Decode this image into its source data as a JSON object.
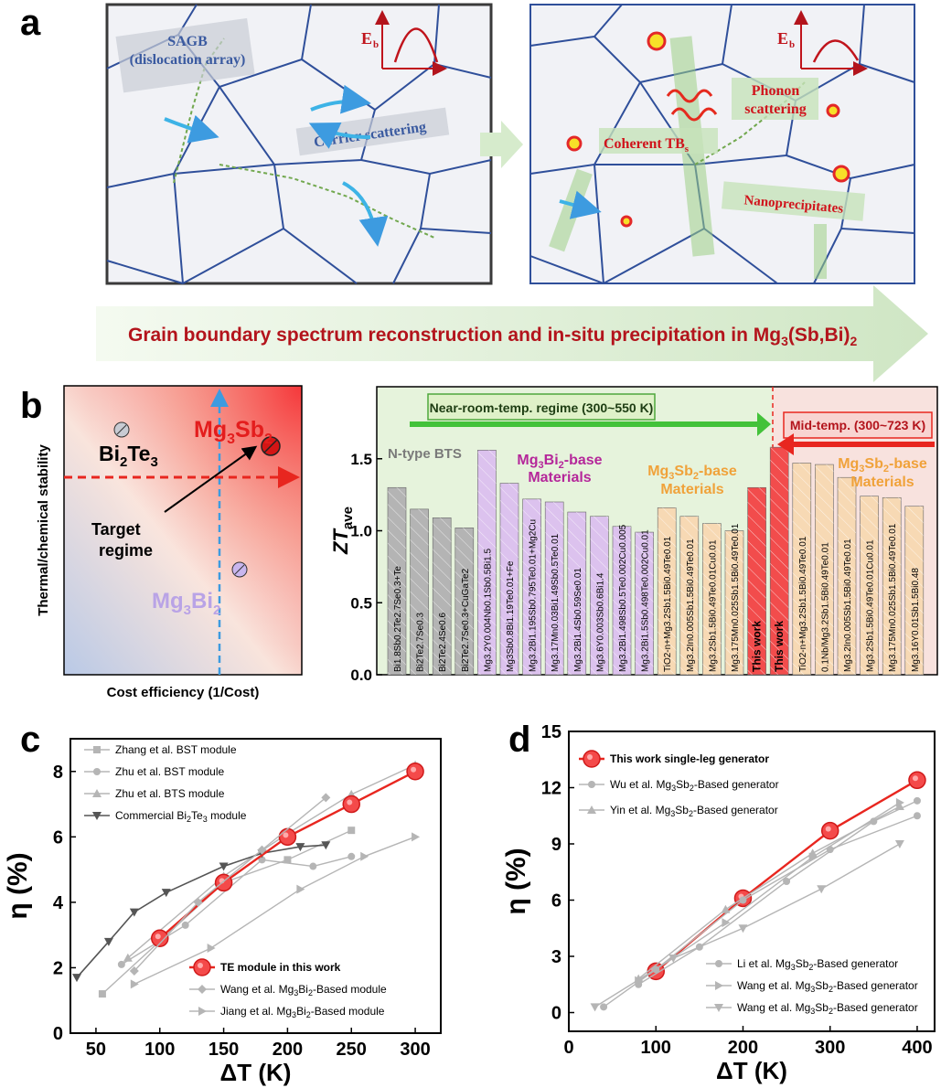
{
  "panel_labels": {
    "a": "a",
    "b": "b",
    "c": "c",
    "d": "d"
  },
  "panel_a": {
    "left": {
      "sagb_line1": "SAGB",
      "sagb_line2": "(dislocation array)",
      "carrier": "Carrier scattering",
      "eb": "E",
      "eb_sub": "b"
    },
    "right": {
      "phonon_line1": "Phonon",
      "phonon_line2": "scattering",
      "coherent": "Coherent TB",
      "coherent_sub": "s",
      "nano": "Nanoprecipitates",
      "eb": "E",
      "eb_sub": "b"
    },
    "banner": "Grain boundary spectrum reconstruction and in-situ precipitation in Mg",
    "banner_sub1": "3",
    "banner_mid": "(Sb,Bi)",
    "banner_sub2": "2",
    "colors": {
      "grain": "#2f4f9a",
      "banner_text": "#b3141c",
      "arrow": "#d9ecd0"
    }
  },
  "panel_b_left": {
    "ylabel": "Thermal/chemical stability",
    "xlabel": "Cost efficiency (1/Cost)",
    "bi2te3": "Bi",
    "bi2te3_s1": "2",
    "bi2te3_t": "Te",
    "bi2te3_s2": "3",
    "mg3sb2": "Mg",
    "mg3sb2_s1": "3",
    "mg3sb2_t": "Sb",
    "mg3sb2_s2": "2",
    "mg3bi2": "Mg",
    "mg3bi2_s1": "3",
    "mg3bi2_t": "Bi",
    "mg3bi2_s2": "2",
    "target1": "Target",
    "target2": "regime"
  },
  "chart_data": [
    {
      "type": "bar",
      "ylabel": "ZT",
      "ylabel_sub": "ave",
      "ylim": [
        0,
        1.9
      ],
      "yticks": [
        "0.0",
        "0.5",
        "1.0",
        "1.5"
      ],
      "regime_near": "Near-room-temp. regime (300~550 K)",
      "regime_mid": "Mid-temp. (300~723 K)",
      "group_labels": {
        "bts": "N-type BTS",
        "mg3bi2_1": "Mg",
        "mg3bi2_s1": "3",
        "mg3bi2_t": "Bi",
        "mg3bi2_s2": "2",
        "mg3bi2_2": "-base",
        "mg3bi2_3": "Materials",
        "mg3sb2_1": "Mg",
        "mg3sb2_s1": "3",
        "mg3sb2_t": "Sb",
        "mg3sb2_s2": "2",
        "mg3sb2_2": "-base",
        "mg3sb2_3": "Materials",
        "this_work": "This work"
      },
      "bars": [
        {
          "label": "Bi1.8Sb0.2Te2.7Se0.3+Te",
          "value": 1.3,
          "group": "bts"
        },
        {
          "label": "Bi2Te2.7Se0.3",
          "value": 1.15,
          "group": "bts"
        },
        {
          "label": "Bi2Te2.4Se0.6",
          "value": 1.09,
          "group": "bts"
        },
        {
          "label": "Bi2Te2.7Se0.3+CuGaTe2",
          "value": 1.02,
          "group": "bts"
        },
        {
          "label": "Mg3.2Y0.004Nb0.1Sb0.5Bi1.5",
          "value": 1.56,
          "group": "mg3bi2"
        },
        {
          "label": "Mg3Sb0.8Bi1.19Te0.01+Fe",
          "value": 1.33,
          "group": "mg3bi2"
        },
        {
          "label": "Mg3.2Bi1.195Sb0.795Te0.01+Mg2Cu",
          "value": 1.22,
          "group": "mg3bi2"
        },
        {
          "label": "Mg3.17Mn0.03Bi1.49Sb0.5Te0.01",
          "value": 1.2,
          "group": "mg3bi2"
        },
        {
          "label": "Mg3.2Bi1.4Sb0.59Se0.01",
          "value": 1.13,
          "group": "mg3bi2"
        },
        {
          "label": "Mg3.6Y0.003Sb0.6Bi1.4",
          "value": 1.1,
          "group": "mg3bi2"
        },
        {
          "label": "Mg3.2Bi1.498Sb0.5Te0.002Cu0.005",
          "value": 1.03,
          "group": "mg3bi2"
        },
        {
          "label": "Mg3.2Bi1.5Sb0.498Te0.002Cu0.01",
          "value": 0.99,
          "group": "mg3bi2"
        },
        {
          "label": "TiO2-n+Mg3.2Sb1.5Bi0.49Te0.01",
          "value": 1.16,
          "group": "mg3sb2"
        },
        {
          "label": "Mg3.2In0.005Sb1.5Bi0.49Te0.01",
          "value": 1.1,
          "group": "mg3sb2"
        },
        {
          "label": "Mg3.2Sb1.5Bi0.49Te0.01Cu0.01",
          "value": 1.05,
          "group": "mg3sb2"
        },
        {
          "label": "Mg3.175Mn0.025Sb1.5Bi0.49Te0.01",
          "value": 1.0,
          "group": "mg3sb2"
        },
        {
          "label": "This work",
          "value": 1.3,
          "group": "this"
        },
        {
          "label": "This work",
          "value": 1.58,
          "group": "this"
        },
        {
          "label": "TiO2-n+Mg3.2Sb1.5Bi0.49Te0.01",
          "value": 1.47,
          "group": "mg3sb2"
        },
        {
          "label": "0.1Nb/Mg3.2Sb1.5Bi0.49Te0.01",
          "value": 1.46,
          "group": "mg3sb2"
        },
        {
          "label": "Mg3.2In0.005Sb1.5Bi0.49Te0.01",
          "value": 1.37,
          "group": "mg3sb2"
        },
        {
          "label": "Mg3.2Sb1.5Bi0.49Te0.01Cu0.01",
          "value": 1.24,
          "group": "mg3sb2"
        },
        {
          "label": "Mg3.175Mn0.025Sb1.5Bi0.49Te0.01",
          "value": 1.23,
          "group": "mg3sb2"
        },
        {
          "label": "Mg3.16Y0.01Sb1.5Bi0.48",
          "value": 1.17,
          "group": "mg3sb2"
        }
      ]
    },
    {
      "type": "line",
      "xlabel": "ΔT (K)",
      "ylabel": "η (%)",
      "xlim": [
        30,
        320
      ],
      "ylim": [
        0,
        9
      ],
      "xticks": [
        50,
        100,
        150,
        200,
        250,
        300
      ],
      "yticks": [
        0,
        2,
        4,
        6,
        8
      ],
      "series": [
        {
          "name": "Zhang et al. BST module",
          "marker": "square",
          "points": [
            [
              55,
              1.2
            ],
            [
              150,
              4.6
            ],
            [
              200,
              5.3
            ],
            [
              250,
              6.2
            ]
          ]
        },
        {
          "name": "Zhu et al. BST module",
          "marker": "circle",
          "points": [
            [
              70,
              2.1
            ],
            [
              120,
              3.3
            ],
            [
              180,
              5.3
            ],
            [
              220,
              5.1
            ],
            [
              250,
              5.4
            ]
          ]
        },
        {
          "name": "Zhu et al. BTS module",
          "marker": "triangle",
          "points": [
            [
              75,
              2.3
            ],
            [
              150,
              4.8
            ],
            [
              200,
              6.1
            ],
            [
              250,
              7.3
            ],
            [
              300,
              8.2
            ]
          ]
        },
        {
          "name": "Commercial Bi2Te3 module",
          "marker": "triangle-down",
          "points": [
            [
              35,
              1.7
            ],
            [
              60,
              2.8
            ],
            [
              80,
              3.7
            ],
            [
              105,
              4.3
            ],
            [
              150,
              5.1
            ],
            [
              180,
              5.5
            ],
            [
              210,
              5.7
            ],
            [
              230,
              5.75
            ]
          ]
        },
        {
          "name": "TE module in this work",
          "marker": "big-circle",
          "points": [
            [
              100,
              2.9
            ],
            [
              150,
              4.6
            ],
            [
              200,
              6.0
            ],
            [
              250,
              7.0
            ],
            [
              300,
              8.0
            ]
          ]
        },
        {
          "name": "Wang et al. Mg3Bi2-Based module",
          "marker": "diamond",
          "points": [
            [
              80,
              1.9
            ],
            [
              130,
              4.0
            ],
            [
              180,
              5.6
            ],
            [
              230,
              7.2
            ]
          ]
        },
        {
          "name": "Jiang et al. Mg3Bi2-Based module",
          "marker": "triangle-right",
          "points": [
            [
              80,
              1.5
            ],
            [
              140,
              2.6
            ],
            [
              210,
              4.4
            ],
            [
              260,
              5.4
            ],
            [
              300,
              6.0
            ]
          ]
        }
      ]
    },
    {
      "type": "line",
      "xlabel": "ΔT (K)",
      "ylabel": "η (%)",
      "xlim": [
        0,
        420
      ],
      "ylim": [
        -1,
        15
      ],
      "xticks": [
        0,
        100,
        200,
        300,
        400
      ],
      "yticks": [
        0,
        3,
        6,
        9,
        12,
        15
      ],
      "series": [
        {
          "name": "This work single-leg generator",
          "marker": "big-circle",
          "points": [
            [
              100,
              2.2
            ],
            [
              200,
              6.1
            ],
            [
              300,
              9.7
            ],
            [
              400,
              12.4
            ]
          ]
        },
        {
          "name": "Wu et al. Mg3Sb2-Based generator",
          "marker": "circle",
          "points": [
            [
              40,
              0.3
            ],
            [
              100,
              2.3
            ],
            [
              200,
              6.0
            ],
            [
              300,
              8.7
            ],
            [
              400,
              10.5
            ]
          ]
        },
        {
          "name": "Yin et al. Mg3Sb2-Based generator",
          "marker": "triangle",
          "points": [
            [
              80,
              1.8
            ],
            [
              180,
              5.5
            ],
            [
              280,
              8.5
            ],
            [
              380,
              11.0
            ]
          ]
        },
        {
          "name": "Li et al. Mg3Sb2-Based generator",
          "marker": "circle",
          "points": [
            [
              80,
              1.5
            ],
            [
              150,
              3.5
            ],
            [
              250,
              7.0
            ],
            [
              350,
              10.2
            ],
            [
              400,
              11.3
            ]
          ]
        },
        {
          "name": "Wang et al. Mg3Sb2-Based generator",
          "marker": "triangle-right",
          "points": [
            [
              80,
              1.7
            ],
            [
              180,
              4.8
            ],
            [
              280,
              8.3
            ],
            [
              380,
              11.2
            ]
          ]
        },
        {
          "name": "Wang et al. Mg3Sb2-Based generator",
          "marker": "triangle-down",
          "points": [
            [
              30,
              0.3
            ],
            [
              120,
              2.9
            ],
            [
              200,
              4.5
            ],
            [
              290,
              6.6
            ],
            [
              380,
              9.0
            ]
          ]
        }
      ]
    }
  ],
  "legend_c": {
    "zhang": "Zhang et al. BST module",
    "zhu_bst": "Zhu et al. BST module",
    "zhu_bts": "Zhu et al. BTS module",
    "commercial": "Commercial Bi",
    "commercial_s1": "2",
    "commercial_t": "Te",
    "commercial_s2": "3",
    "commercial_end": " module",
    "this": "TE module in this work",
    "wang": "Wang et al. Mg",
    "wang_s1": "3",
    "wang_t": "Bi",
    "wang_s2": "2",
    "wang_end": "-Based module",
    "jiang": "Jiang et al. Mg",
    "jiang_s1": "3",
    "jiang_t": "Bi",
    "jiang_s2": "2",
    "jiang_end": "-Based module"
  },
  "legend_d": {
    "this": "This work single-leg generator",
    "wu": "Wu et al. Mg",
    "yin": "Yin et al. Mg",
    "li": "Li et al. Mg",
    "wang1": "Wang et al. Mg",
    "wang2": "Wang et al. Mg",
    "s1": "3",
    "t": "Sb",
    "s2": "2",
    "end": "-Based generator"
  }
}
